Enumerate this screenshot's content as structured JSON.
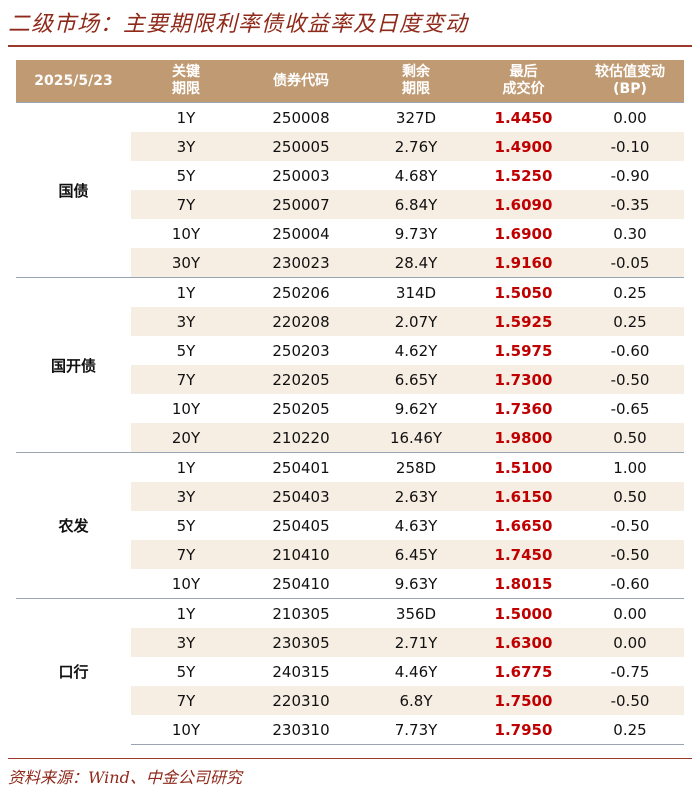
{
  "title": "二级市场：主要期限利率债收益率及日度变动",
  "source": "资料来源：Wind、中金公司研究",
  "colors": {
    "accent": "#8f2a1b",
    "header_bg": "#c09a72",
    "price": "#c00000",
    "alt_row": "#f6ede3"
  },
  "header": {
    "date": "2025/5/23",
    "term": [
      "关键",
      "期限"
    ],
    "code": "债券代码",
    "remain": [
      "剩余",
      "期限"
    ],
    "price": [
      "最后",
      "成交价"
    ],
    "change": [
      "较估值变动",
      "(BP)"
    ]
  },
  "groups": [
    {
      "name": "国债",
      "rows": [
        [
          "1Y",
          "250008",
          "327D",
          "1.4450",
          "0.00"
        ],
        [
          "3Y",
          "250005",
          "2.76Y",
          "1.4900",
          "-0.10"
        ],
        [
          "5Y",
          "250003",
          "4.68Y",
          "1.5250",
          "-0.90"
        ],
        [
          "7Y",
          "250007",
          "6.84Y",
          "1.6090",
          "-0.35"
        ],
        [
          "10Y",
          "250004",
          "9.73Y",
          "1.6900",
          "0.30"
        ],
        [
          "30Y",
          "230023",
          "28.4Y",
          "1.9160",
          "-0.05"
        ]
      ]
    },
    {
      "name": "国开债",
      "rows": [
        [
          "1Y",
          "250206",
          "314D",
          "1.5050",
          "0.25"
        ],
        [
          "3Y",
          "220208",
          "2.07Y",
          "1.5925",
          "0.25"
        ],
        [
          "5Y",
          "250203",
          "4.62Y",
          "1.5975",
          "-0.60"
        ],
        [
          "7Y",
          "220205",
          "6.65Y",
          "1.7300",
          "-0.50"
        ],
        [
          "10Y",
          "250205",
          "9.62Y",
          "1.7360",
          "-0.65"
        ],
        [
          "20Y",
          "210220",
          "16.46Y",
          "1.9800",
          "0.50"
        ]
      ]
    },
    {
      "name": "农发",
      "rows": [
        [
          "1Y",
          "250401",
          "258D",
          "1.5100",
          "1.00"
        ],
        [
          "3Y",
          "250403",
          "2.63Y",
          "1.6150",
          "0.50"
        ],
        [
          "5Y",
          "250405",
          "4.63Y",
          "1.6650",
          "-0.50"
        ],
        [
          "7Y",
          "210410",
          "6.45Y",
          "1.7450",
          "-0.50"
        ],
        [
          "10Y",
          "250410",
          "9.63Y",
          "1.8015",
          "-0.60"
        ]
      ]
    },
    {
      "name": "口行",
      "rows": [
        [
          "1Y",
          "210305",
          "356D",
          "1.5000",
          "0.00"
        ],
        [
          "3Y",
          "230305",
          "2.71Y",
          "1.6300",
          "0.00"
        ],
        [
          "5Y",
          "240315",
          "4.46Y",
          "1.6775",
          "-0.75"
        ],
        [
          "7Y",
          "220310",
          "6.8Y",
          "1.7500",
          "-0.50"
        ],
        [
          "10Y",
          "230310",
          "7.73Y",
          "1.7950",
          "0.25"
        ]
      ]
    }
  ]
}
